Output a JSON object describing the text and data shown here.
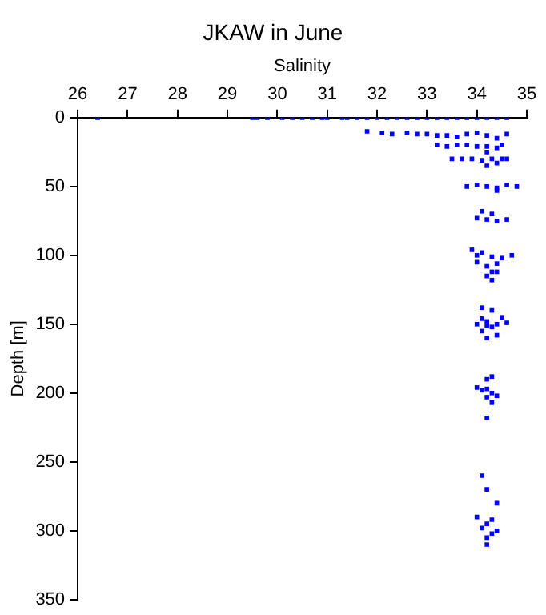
{
  "chart_data": {
    "type": "scatter",
    "title": "JKAW in June",
    "xlabel": "Salinity",
    "ylabel": "Depth [m]",
    "xlim": [
      26,
      35
    ],
    "xticks": [
      26,
      27,
      28,
      29,
      30,
      31,
      32,
      33,
      34,
      35
    ],
    "ylim": [
      350,
      0
    ],
    "yticks": [
      0,
      50,
      100,
      150,
      200,
      250,
      300,
      350
    ],
    "grid": false,
    "legend": false,
    "marker": "square",
    "series": [
      {
        "color": "#0000ff",
        "x": [
          26.4,
          29.5,
          29.6,
          29.8,
          30.1,
          30.3,
          30.5,
          30.7,
          30.9,
          31.0,
          31.3,
          31.4,
          31.6,
          31.8,
          32.0,
          32.2,
          32.4,
          32.6,
          32.8,
          33.0,
          33.2,
          33.4,
          33.6,
          33.8,
          34.0,
          34.2,
          34.4,
          34.6,
          31.8,
          32.1,
          32.3,
          32.6,
          32.8,
          33.0,
          33.2,
          33.4,
          33.6,
          33.8,
          34.0,
          34.2,
          34.4,
          34.6,
          33.2,
          33.4,
          33.6,
          33.8,
          34.0,
          34.2,
          34.4,
          34.5,
          34.2,
          33.5,
          33.7,
          33.9,
          34.1,
          34.3,
          34.5,
          34.6,
          34.2,
          34.4,
          33.8,
          34.0,
          34.2,
          34.4,
          34.6,
          34.8,
          34.4,
          34.0,
          34.2,
          34.4,
          34.6,
          34.1,
          34.3,
          33.9,
          34.0,
          34.1,
          34.3,
          34.5,
          34.7,
          34.0,
          34.2,
          34.4,
          34.3,
          34.2,
          34.4,
          34.3,
          34.1,
          34.2,
          34.0,
          34.2,
          34.4,
          34.6,
          34.1,
          34.3,
          34.5,
          34.2,
          34.4,
          34.3,
          34.1,
          34.2,
          34.3,
          34.0,
          34.2,
          34.4,
          34.1,
          34.3,
          34.2,
          34.3,
          34.2,
          34.1,
          34.2,
          34.4,
          34.0,
          34.2,
          34.4,
          34.1,
          34.3,
          34.2,
          34.3,
          34.2
        ],
        "values": [
          0,
          0,
          0,
          0,
          0,
          0,
          0,
          0,
          0,
          0,
          0,
          0,
          0,
          0,
          0,
          0,
          0,
          0,
          0,
          0,
          0,
          0,
          0,
          0,
          0,
          0,
          0,
          0,
          10,
          11,
          12,
          11,
          12,
          12,
          13,
          13,
          14,
          12,
          11,
          13,
          15,
          12,
          20,
          21,
          20,
          20,
          21,
          21,
          22,
          20,
          25,
          30,
          30,
          30,
          31,
          30,
          30,
          30,
          35,
          33,
          50,
          49,
          50,
          51,
          49,
          50,
          53,
          73,
          74,
          75,
          74,
          68,
          70,
          96,
          100,
          98,
          101,
          102,
          100,
          105,
          108,
          106,
          112,
          115,
          112,
          118,
          146,
          148,
          150,
          151,
          150,
          149,
          155,
          152,
          145,
          160,
          158,
          140,
          138,
          197,
          200,
          196,
          203,
          202,
          198,
          207,
          190,
          188,
          218,
          260,
          270,
          280,
          290,
          295,
          300,
          298,
          302,
          305,
          292,
          310
        ]
      }
    ]
  }
}
